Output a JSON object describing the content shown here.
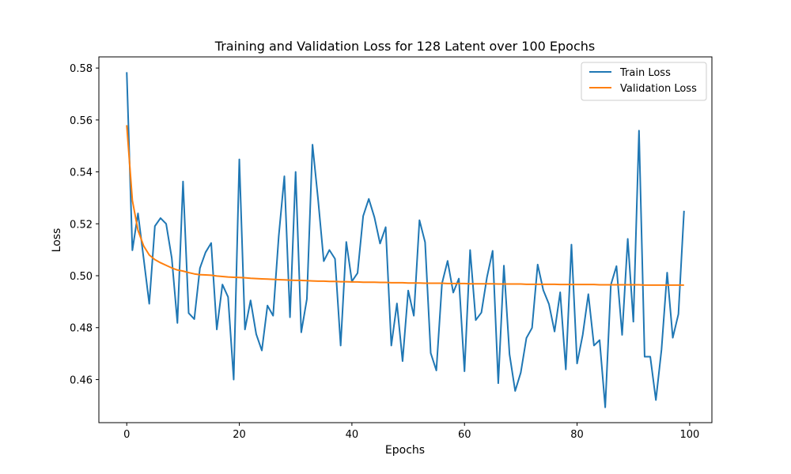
{
  "chart_data": {
    "type": "line",
    "title": "Training and Validation Loss for 128 Latent over 100 Epochs",
    "xlabel": "Epochs",
    "ylabel": "Loss",
    "xlim": [
      -4.95,
      103.95
    ],
    "ylim": [
      0.4434,
      0.5843
    ],
    "xticks": [
      0,
      20,
      40,
      60,
      80,
      100
    ],
    "xtick_labels": [
      "0",
      "20",
      "40",
      "60",
      "80",
      "100"
    ],
    "yticks": [
      0.46,
      0.48,
      0.5,
      0.52,
      0.54,
      0.56,
      0.58
    ],
    "ytick_labels": [
      "0.46",
      "0.48",
      "0.50",
      "0.52",
      "0.54",
      "0.56",
      "0.58"
    ],
    "grid": false,
    "legend": "top-right",
    "series": [
      {
        "name": "Train Loss",
        "color": "#1f77b4",
        "values": [
          0.5784,
          0.5098,
          0.524,
          0.5067,
          0.4892,
          0.5191,
          0.5222,
          0.52,
          0.5068,
          0.4818,
          0.5363,
          0.4856,
          0.4833,
          0.5029,
          0.509,
          0.5126,
          0.4793,
          0.4966,
          0.4918,
          0.46,
          0.5448,
          0.4793,
          0.4905,
          0.4775,
          0.4712,
          0.4885,
          0.4846,
          0.5152,
          0.5383,
          0.484,
          0.54,
          0.4782,
          0.491,
          0.5505,
          0.5292,
          0.5056,
          0.5099,
          0.5065,
          0.4731,
          0.513,
          0.4978,
          0.501,
          0.523,
          0.5296,
          0.5225,
          0.5124,
          0.5187,
          0.4731,
          0.4893,
          0.4671,
          0.4943,
          0.4846,
          0.5214,
          0.5129,
          0.4702,
          0.4635,
          0.497,
          0.5057,
          0.4935,
          0.4989,
          0.4632,
          0.5099,
          0.4829,
          0.4858,
          0.4995,
          0.5096,
          0.4586,
          0.5039,
          0.4697,
          0.4556,
          0.4627,
          0.476,
          0.4799,
          0.5043,
          0.4944,
          0.4891,
          0.4785,
          0.4936,
          0.4639,
          0.512,
          0.4662,
          0.4772,
          0.4929,
          0.4731,
          0.4752,
          0.4493,
          0.4965,
          0.5037,
          0.4772,
          0.5142,
          0.4823,
          0.5559,
          0.4688,
          0.4688,
          0.4521,
          0.4716,
          0.5012,
          0.4761,
          0.4852,
          0.525
        ]
      },
      {
        "name": "Validation Loss",
        "color": "#ff7f0e",
        "values": [
          0.558,
          0.529,
          0.5175,
          0.5115,
          0.508,
          0.5062,
          0.505,
          0.504,
          0.503,
          0.5022,
          0.5018,
          0.5012,
          0.5007,
          0.5004,
          0.5003,
          0.5002,
          0.4999,
          0.4997,
          0.4995,
          0.4994,
          0.4993,
          0.4992,
          0.499,
          0.4989,
          0.4988,
          0.4987,
          0.4986,
          0.4985,
          0.4984,
          0.4983,
          0.4982,
          0.4982,
          0.4981,
          0.498,
          0.4979,
          0.4979,
          0.4978,
          0.4978,
          0.4977,
          0.4977,
          0.4976,
          0.4976,
          0.4975,
          0.4975,
          0.4975,
          0.4974,
          0.4974,
          0.4973,
          0.4973,
          0.4973,
          0.4972,
          0.4972,
          0.4972,
          0.4971,
          0.4971,
          0.4971,
          0.4971,
          0.497,
          0.497,
          0.497,
          0.497,
          0.4969,
          0.4969,
          0.4969,
          0.4969,
          0.4969,
          0.4968,
          0.4968,
          0.4968,
          0.4968,
          0.4968,
          0.4967,
          0.4967,
          0.4967,
          0.4967,
          0.4967,
          0.4967,
          0.4966,
          0.4966,
          0.4966,
          0.4966,
          0.4966,
          0.4966,
          0.4966,
          0.4965,
          0.4965,
          0.4965,
          0.4965,
          0.4965,
          0.4965,
          0.4965,
          0.4965,
          0.4964,
          0.4964,
          0.4964,
          0.4964,
          0.4964,
          0.4964,
          0.4964,
          0.4964
        ]
      }
    ]
  }
}
